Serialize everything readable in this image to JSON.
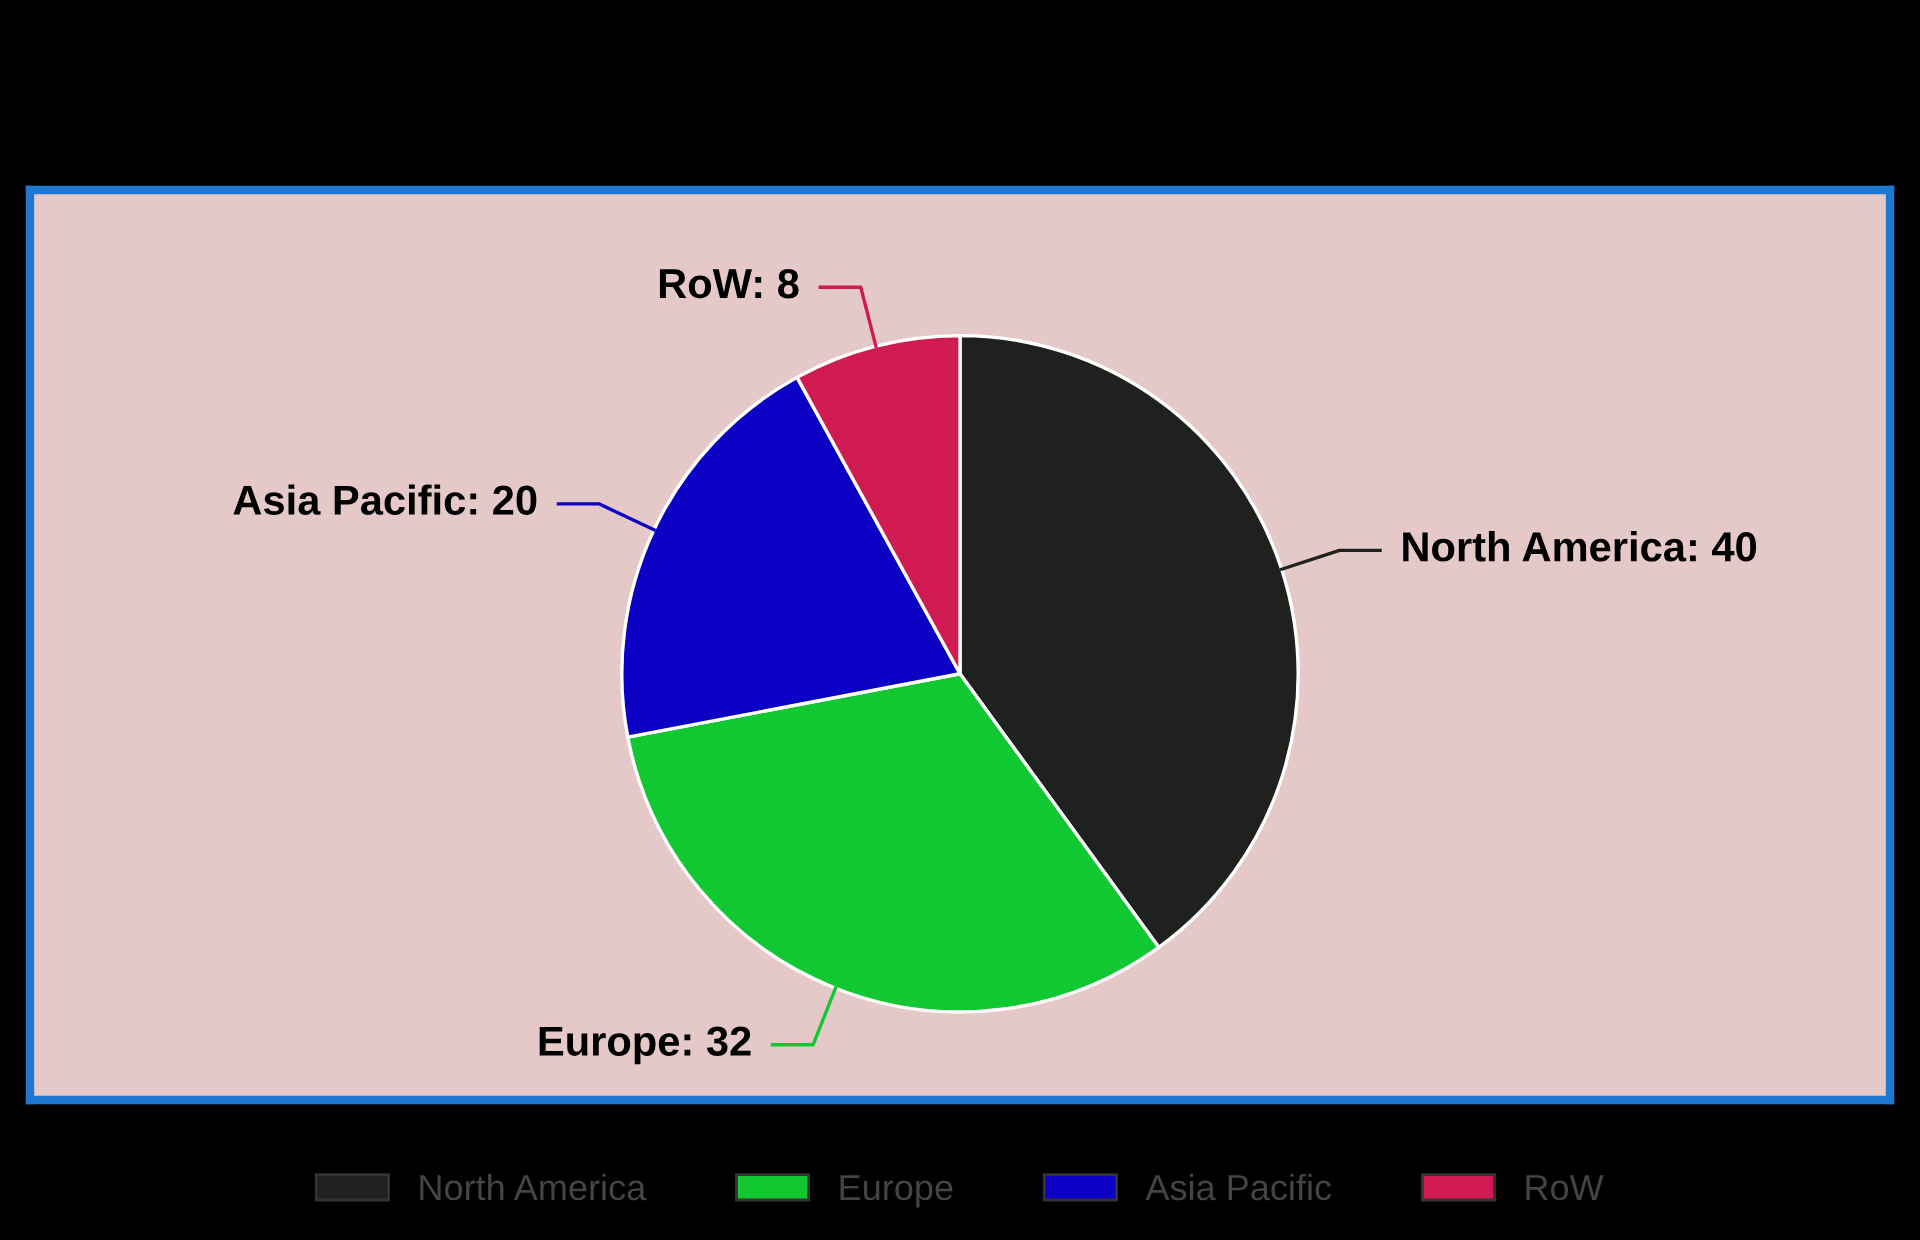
{
  "chart_data": {
    "type": "pie",
    "categories": [
      "North America",
      "Europe",
      "Asia Pacific",
      "RoW"
    ],
    "values": [
      40,
      32,
      20,
      8
    ],
    "colors": [
      "#1e211e",
      "#12c832",
      "#0c00c4",
      "#d01a52"
    ],
    "value_labels": [
      "North America: 40",
      "Europe: 32",
      "Asia Pacific: 20",
      "RoW: 8"
    ],
    "legend": "bottom"
  }
}
